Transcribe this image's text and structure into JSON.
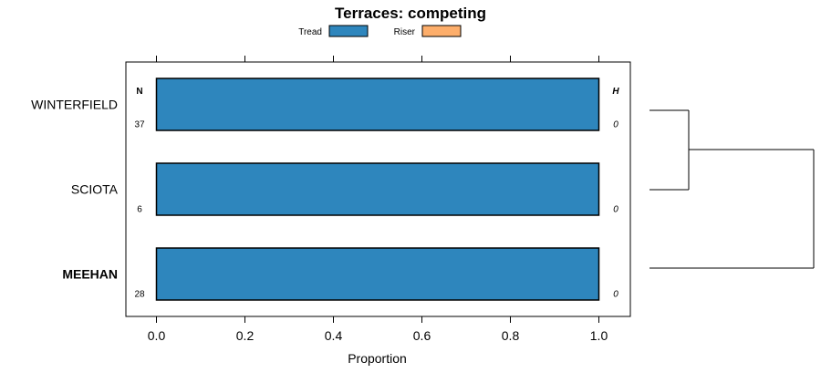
{
  "chart_data": {
    "type": "bar",
    "orientation": "horizontal",
    "stacked": true,
    "title": "Terraces: competing",
    "xlabel": "Proportion",
    "ylabel": "",
    "xlim": [
      -0.07,
      1.07
    ],
    "xticks": [
      0.0,
      0.2,
      0.4,
      0.6,
      0.8,
      1.0
    ],
    "xtick_labels": [
      "0.0",
      "0.2",
      "0.4",
      "0.6",
      "0.8",
      "1.0"
    ],
    "legend_position": "top",
    "legend": [
      {
        "name": "Tread",
        "color": "#2e86bd"
      },
      {
        "name": "Riser",
        "color": "#fdae6b"
      }
    ],
    "categories": [
      "WINTERFIELD",
      "SCIOTA",
      "MEEHAN"
    ],
    "bold_categories": [
      "MEEHAN"
    ],
    "series": [
      {
        "name": "Tread",
        "values": [
          1.0,
          1.0,
          1.0
        ]
      },
      {
        "name": "Riser",
        "values": [
          0.0,
          0.0,
          0.0
        ]
      }
    ],
    "n_header": "N",
    "h_header": "H",
    "n_values": [
      "37",
      "6",
      "28"
    ],
    "h_values": [
      "0",
      "0",
      "0"
    ],
    "dendrogram": "WINTERFIELD and SCIOTA join first, then MEEHAN"
  }
}
